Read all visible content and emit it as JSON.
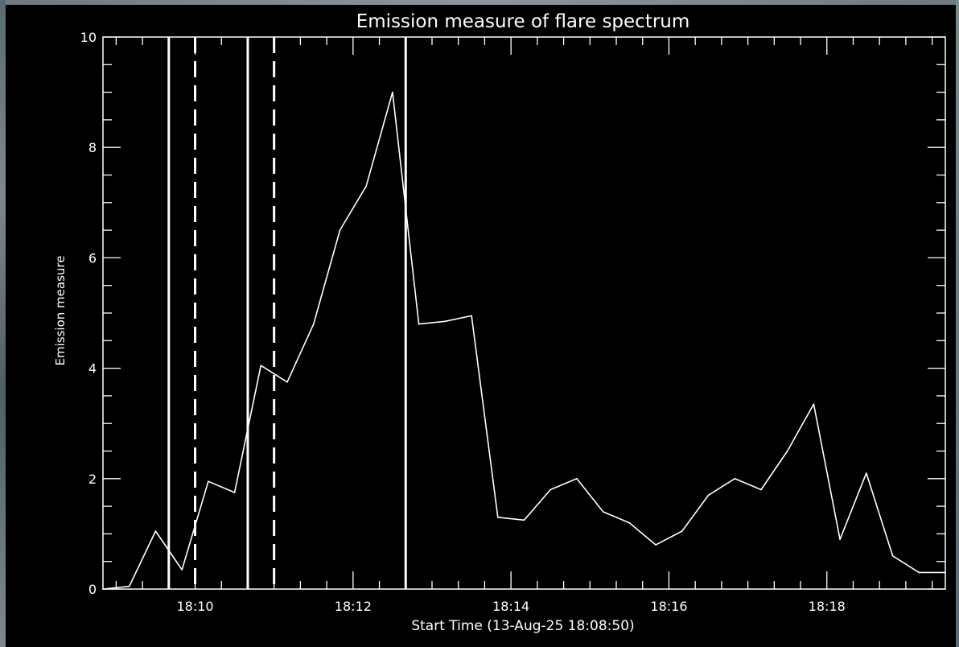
{
  "chart_data": {
    "type": "line",
    "title": "Emission measure of flare spectrum",
    "xlabel": "Start Time (13-Aug-25 18:08:50)",
    "ylabel": "Emission measure",
    "xlim": [
      "18:08:50",
      "18:19:30"
    ],
    "ylim": [
      0,
      10
    ],
    "x_ticks": [
      "18:10",
      "18:12",
      "18:14",
      "18:16",
      "18:18"
    ],
    "y_ticks": [
      "0",
      "2",
      "4",
      "6",
      "8",
      "10"
    ],
    "grid": false,
    "series": [
      {
        "x": [
          "18:08:50",
          "18:09:10",
          "18:09:30",
          "18:09:50",
          "18:10:10",
          "18:10:30",
          "18:10:50",
          "18:11:10",
          "18:11:30",
          "18:11:50",
          "18:12:10",
          "18:12:30",
          "18:12:50",
          "18:13:10",
          "18:13:30",
          "18:13:50",
          "18:14:10",
          "18:14:30",
          "18:14:50",
          "18:15:10",
          "18:15:30",
          "18:15:50",
          "18:16:10",
          "18:16:30",
          "18:16:50",
          "18:17:10",
          "18:17:30",
          "18:17:50",
          "18:18:10",
          "18:18:30",
          "18:18:50",
          "18:19:10",
          "18:19:30"
        ],
        "values": [
          0.0,
          0.05,
          1.05,
          0.35,
          1.95,
          1.75,
          4.05,
          3.75,
          4.8,
          6.5,
          7.3,
          9.0,
          4.8,
          4.85,
          4.95,
          1.3,
          1.25,
          1.8,
          2.0,
          1.4,
          1.2,
          0.8,
          1.05,
          1.7,
          2.0,
          1.8,
          2.5,
          3.35,
          0.9,
          2.1,
          0.6,
          0.3,
          0.3
        ]
      }
    ],
    "vertical_lines": [
      {
        "x": "18:09:40",
        "style": "solid"
      },
      {
        "x": "18:10:00",
        "style": "dashed"
      },
      {
        "x": "18:10:40",
        "style": "solid"
      },
      {
        "x": "18:11:00",
        "style": "dashed"
      },
      {
        "x": "18:12:40",
        "style": "solid"
      }
    ]
  }
}
